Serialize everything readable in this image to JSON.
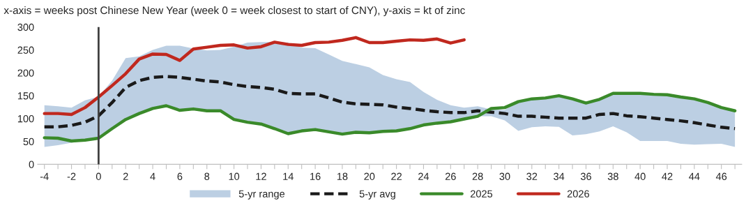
{
  "chart_data": {
    "type": "line",
    "title": "x-axis = weeks post Chinese New Year (week 0 = week closest to start of CNY), y-axis = kt of zinc",
    "x": [
      -4,
      -3,
      -2,
      -1,
      0,
      1,
      2,
      3,
      4,
      5,
      6,
      7,
      8,
      9,
      10,
      11,
      12,
      13,
      14,
      15,
      16,
      17,
      18,
      19,
      20,
      21,
      22,
      23,
      24,
      25,
      26,
      27,
      28,
      29,
      30,
      31,
      32,
      33,
      34,
      35,
      36,
      37,
      38,
      39,
      40,
      41,
      42,
      43,
      44,
      45,
      46,
      47
    ],
    "series": [
      {
        "name": "5-yr range",
        "type": "area",
        "color": "#bccfe3",
        "lower": [
          38,
          42,
          47,
          52,
          57,
          78,
          98,
          111,
          122,
          128,
          118,
          121,
          117,
          117,
          98,
          92,
          88,
          78,
          67,
          73,
          76,
          71,
          66,
          70,
          69,
          72,
          73,
          78,
          86,
          90,
          93,
          99,
          105,
          105,
          96,
          73,
          81,
          83,
          82,
          63,
          66,
          72,
          83,
          70,
          51,
          51,
          51,
          45,
          43,
          44,
          45,
          38
        ],
        "values": [
          null,
          null,
          null,
          null,
          null,
          null,
          null,
          null,
          null,
          null,
          null,
          null,
          null,
          null,
          null,
          null,
          null,
          null,
          null,
          null,
          null,
          null,
          null,
          null,
          null,
          null,
          null,
          null,
          null,
          null,
          null,
          null,
          null,
          null,
          null,
          null,
          null,
          null,
          null,
          null,
          null,
          null,
          null,
          null,
          null,
          null,
          null,
          null,
          null,
          null,
          null,
          null
        ],
        "upper": [
          129,
          127,
          124,
          140,
          148,
          183,
          232,
          236,
          250,
          259,
          259,
          253,
          249,
          250,
          257,
          266,
          267,
          267,
          266,
          255,
          254,
          240,
          226,
          219,
          212,
          195,
          186,
          180,
          158,
          141,
          129,
          124,
          127,
          120,
          119,
          137,
          143,
          145,
          150,
          143,
          134,
          142,
          155,
          155,
          155,
          153,
          152,
          147,
          143,
          135,
          124,
          117
        ]
      },
      {
        "name": "5-yr avg",
        "color": "#1a1a1a",
        "line_style": "dashed",
        "values": [
          82,
          82,
          85,
          92,
          106,
          135,
          168,
          183,
          190,
          192,
          190,
          186,
          182,
          180,
          174,
          170,
          168,
          164,
          155,
          154,
          154,
          145,
          136,
          132,
          131,
          130,
          125,
          122,
          118,
          115,
          113,
          113,
          117,
          114,
          111,
          105,
          105,
          103,
          101,
          101,
          101,
          109,
          111,
          106,
          104,
          101,
          98,
          95,
          91,
          86,
          81,
          78
        ]
      },
      {
        "name": "2025",
        "color": "#3a8a2a",
        "line_style": "solid",
        "values": [
          58,
          57,
          51,
          53,
          57,
          78,
          98,
          111,
          122,
          128,
          118,
          121,
          117,
          117,
          98,
          92,
          88,
          78,
          67,
          73,
          76,
          71,
          66,
          70,
          69,
          72,
          73,
          78,
          86,
          90,
          93,
          99,
          105,
          122,
          124,
          137,
          143,
          145,
          150,
          143,
          134,
          142,
          155,
          155,
          155,
          153,
          152,
          147,
          143,
          135,
          124,
          117
        ]
      },
      {
        "name": "2026",
        "color": "#c0281e",
        "line_style": "solid",
        "values": [
          111,
          111,
          109,
          124,
          147,
          172,
          198,
          230,
          241,
          240,
          227,
          252,
          256,
          260,
          261,
          254,
          257,
          267,
          262,
          260,
          266,
          267,
          271,
          277,
          266,
          266,
          269,
          272,
          271,
          274,
          265,
          272,
          null,
          null,
          null,
          null,
          null,
          null,
          null,
          null,
          null,
          null,
          null,
          null,
          null,
          null,
          null,
          null,
          null,
          null,
          null,
          null
        ]
      }
    ],
    "xlim": [
      -4.5,
      47.5
    ],
    "xticks": [
      -4,
      {
        "value": -3,
        "label": null
      },
      -2,
      {
        "value": -1,
        "label": null
      },
      0,
      {
        "value": 1,
        "label": null
      },
      2,
      {
        "value": 3,
        "label": null
      },
      4,
      {
        "value": 5,
        "label": null
      },
      6,
      {
        "value": 7,
        "label": null
      },
      8,
      {
        "value": 9,
        "label": null
      },
      10,
      {
        "value": 11,
        "label": null
      },
      12,
      {
        "value": 13,
        "label": null
      },
      14,
      {
        "value": 15,
        "label": null
      },
      16,
      {
        "value": 17,
        "label": null
      },
      18,
      {
        "value": 19,
        "label": null
      },
      20,
      {
        "value": 21,
        "label": null
      },
      22,
      {
        "value": 23,
        "label": null
      },
      24,
      {
        "value": 25,
        "label": null
      },
      26,
      {
        "value": 27,
        "label": null
      },
      28,
      {
        "value": 29,
        "label": null
      },
      30,
      {
        "value": 31,
        "label": null
      },
      32,
      {
        "value": 33,
        "label": null
      },
      34,
      {
        "value": 35,
        "label": null
      },
      36,
      {
        "value": 37,
        "label": null
      },
      38,
      {
        "value": 39,
        "label": null
      },
      40,
      {
        "value": 41,
        "label": null
      },
      42,
      {
        "value": 43,
        "label": null
      },
      44,
      {
        "value": 45,
        "label": null
      },
      46,
      {
        "value": 47,
        "label": null
      }
    ],
    "ylim": [
      0,
      300
    ],
    "yticks": [
      0,
      50,
      100,
      150,
      200,
      250,
      300
    ],
    "ref_lines": [
      {
        "axis": "x",
        "value": 0,
        "color": "#404040",
        "line_style": "solid"
      }
    ],
    "grid": false,
    "legend": "bottom",
    "marker": "none"
  }
}
